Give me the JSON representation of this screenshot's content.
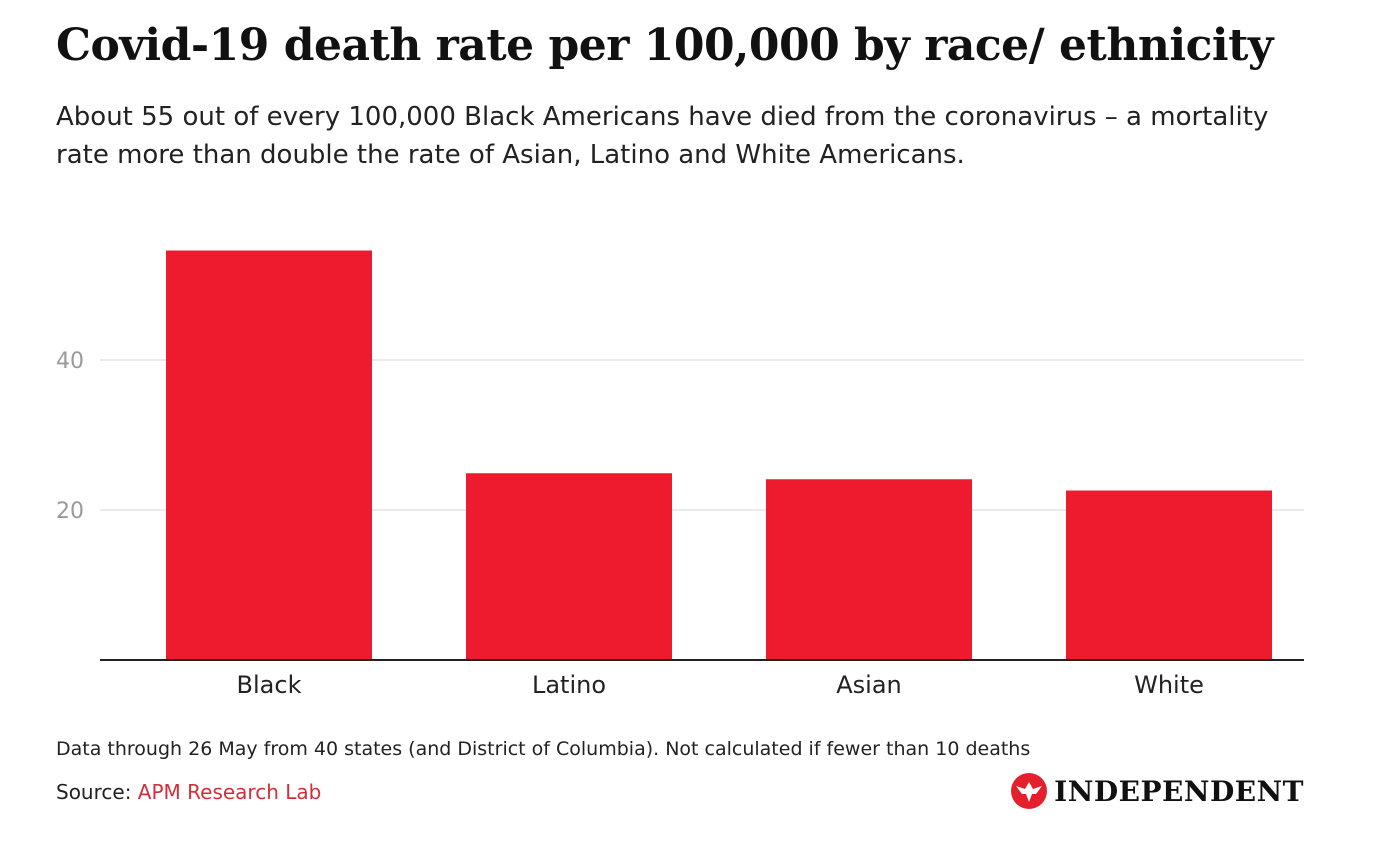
{
  "chart_data": {
    "type": "bar",
    "title": "Covid-19 death rate per 100,000 by race/ ethnicity",
    "subtitle": "About 55 out of every 100,000 Black Americans have died from the coronavirus – a mortality rate more than double the rate of Asian, Latino and White Americans.",
    "categories": [
      "Black",
      "Latino",
      "Asian",
      "White"
    ],
    "values": [
      54.6,
      24.9,
      24.1,
      22.6
    ],
    "xlabel": "",
    "ylabel": "",
    "ylim": [
      0,
      55
    ],
    "yticks": [
      20,
      40
    ],
    "grid": true,
    "bar_color": "#ec1b2e"
  },
  "footer": {
    "note": "Data through 26 May from 40 states (and District of Columbia). Not calculated if fewer than 10 deaths",
    "source_prefix": "Source: ",
    "source_link": "APM Research Lab",
    "brand": "INDEPENDENT"
  },
  "colors": {
    "accent": "#d32f3a",
    "logo_red": "#e2212d"
  }
}
